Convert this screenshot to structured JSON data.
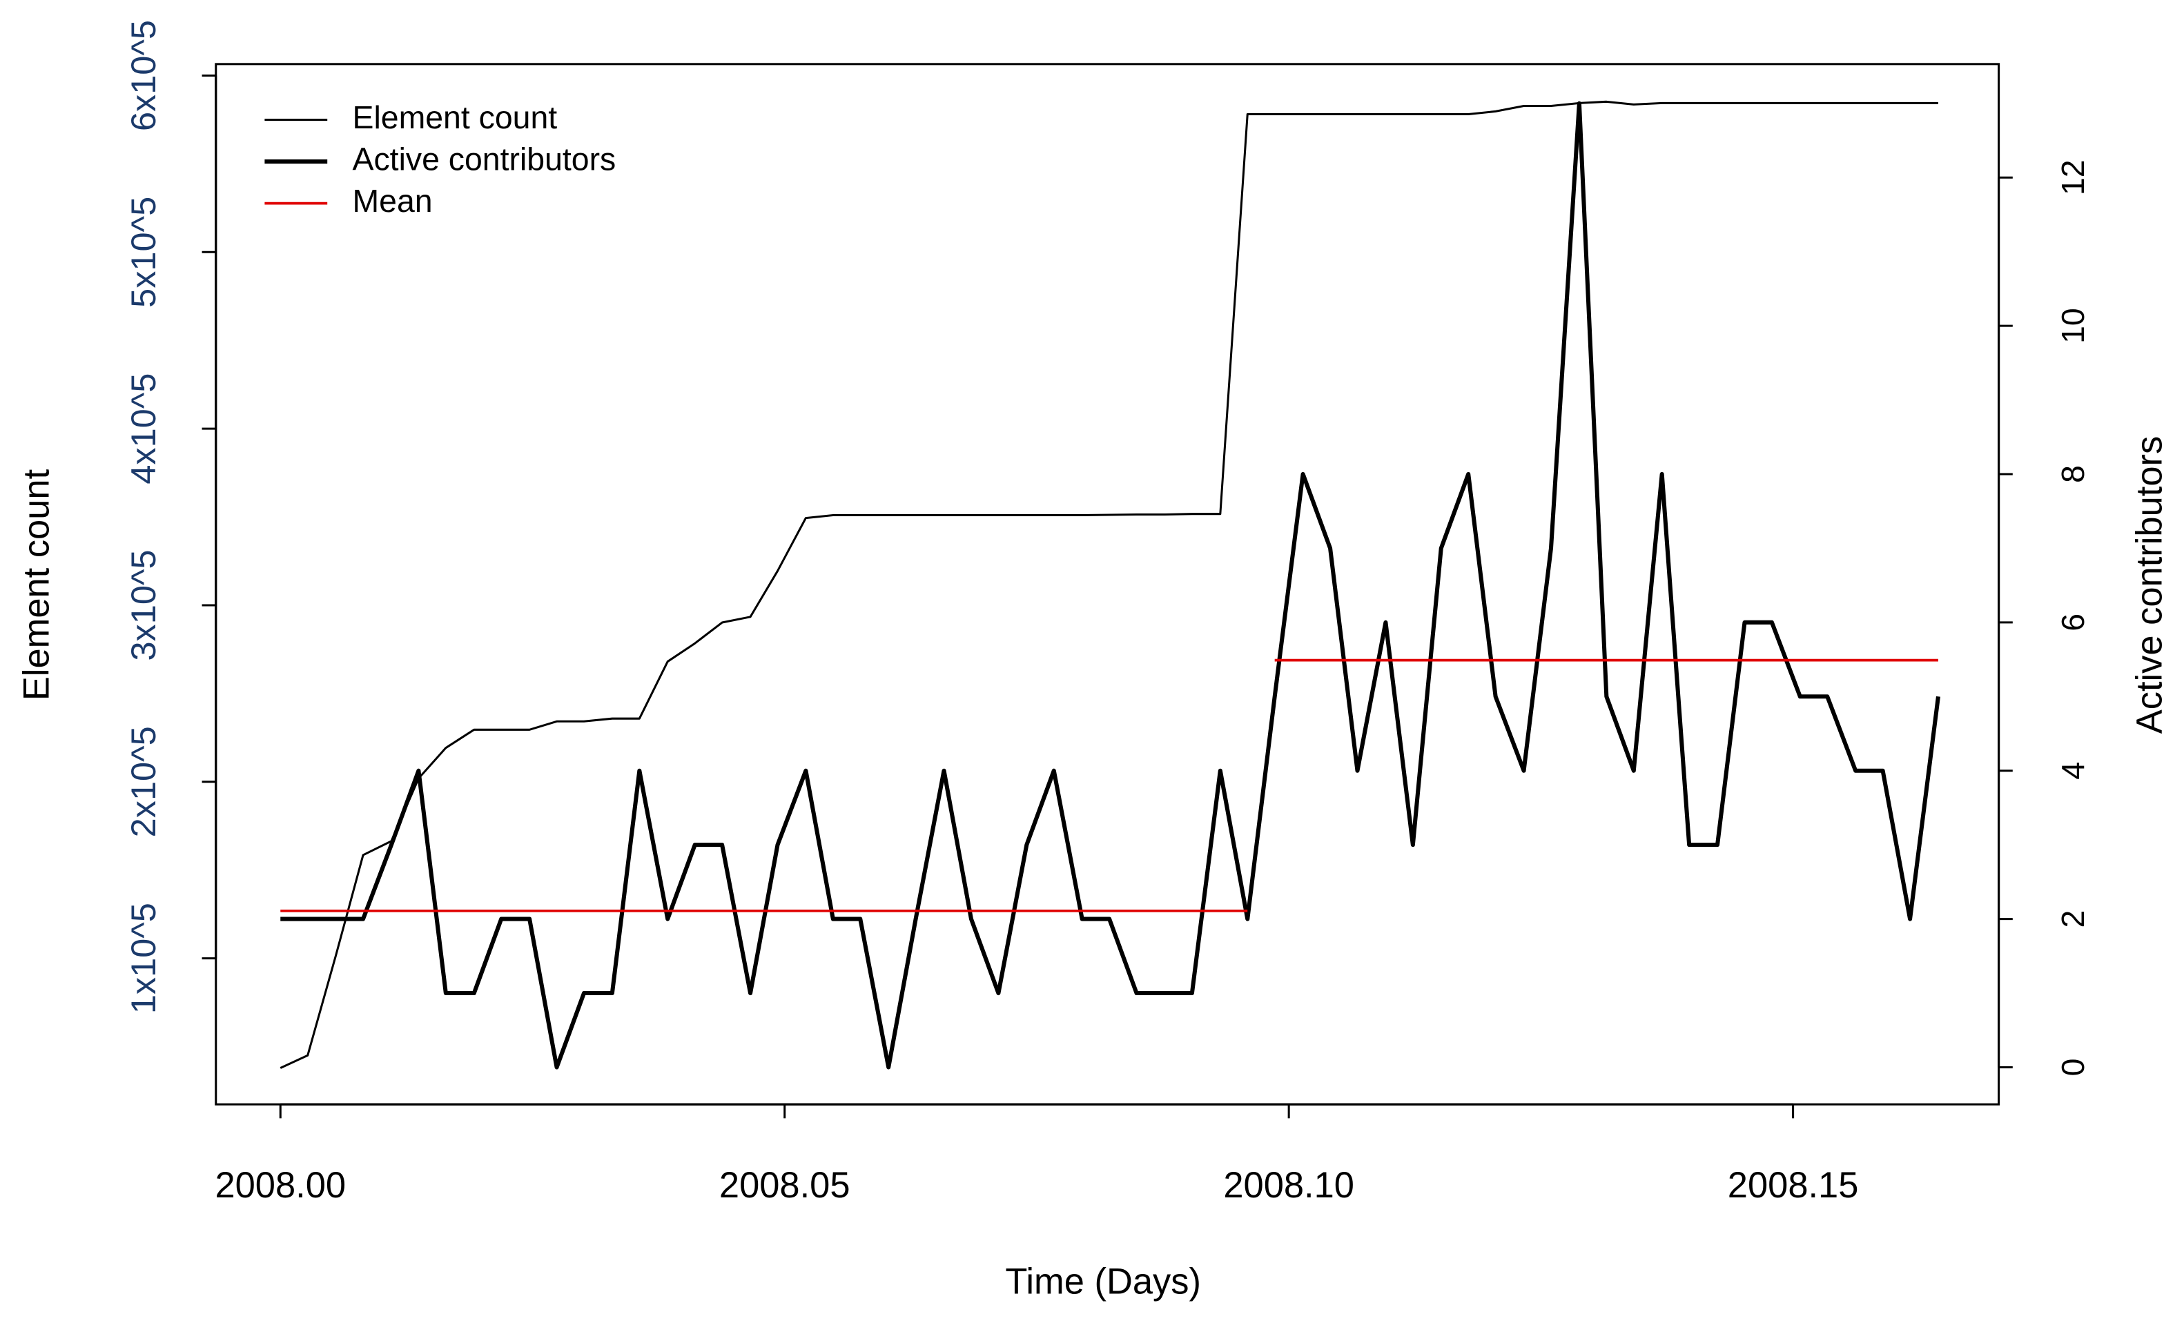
{
  "chart_data": {
    "type": "line",
    "xlabel": "Time (Days)",
    "ylabel": "Element count",
    "y2label": "Active contributors",
    "x": [
      2008.0,
      2008.0027,
      2008.0055,
      2008.0082,
      2008.011,
      2008.0137,
      2008.0164,
      2008.0192,
      2008.0219,
      2008.0247,
      2008.0274,
      2008.0301,
      2008.0329,
      2008.0356,
      2008.0384,
      2008.0411,
      2008.0438,
      2008.0466,
      2008.0493,
      2008.0521,
      2008.0548,
      2008.0575,
      2008.0603,
      2008.063,
      2008.0658,
      2008.0685,
      2008.0712,
      2008.074,
      2008.0767,
      2008.0795,
      2008.0822,
      2008.0849,
      2008.0877,
      2008.0904,
      2008.0932,
      2008.0959,
      2008.0986,
      2008.1014,
      2008.1041,
      2008.1068,
      2008.1096,
      2008.1123,
      2008.1151,
      2008.1178,
      2008.1205,
      2008.1233,
      2008.126,
      2008.1288,
      2008.1315,
      2008.1342,
      2008.137,
      2008.1397,
      2008.1425,
      2008.1452,
      2008.1479,
      2008.1507,
      2008.1534,
      2008.1562,
      2008.1589,
      2008.1616,
      2008.1644
    ],
    "series": [
      {
        "name": "Element count",
        "color": "#000000",
        "width": 1.5,
        "axis": "y",
        "values": [
          37900,
          45000,
          101700,
          158500,
          166400,
          201900,
          219200,
          229500,
          229500,
          229500,
          234200,
          234200,
          235800,
          235800,
          268100,
          278400,
          290200,
          293400,
          319400,
          349400,
          351000,
          351000,
          351000,
          351000,
          351000,
          351000,
          351000,
          351000,
          351000,
          351000,
          351200,
          351400,
          351400,
          351700,
          351700,
          578100,
          578100,
          578100,
          578100,
          578100,
          578100,
          578100,
          578100,
          578100,
          579700,
          582800,
          582800,
          584400,
          585200,
          583600,
          584400,
          584400,
          584400,
          584400,
          584400,
          584400,
          584400,
          584400,
          584400,
          584400,
          584400
        ]
      },
      {
        "name": "Active contributors",
        "color": "#000000",
        "width": 3,
        "axis": "y2",
        "values": [
          2,
          2,
          2,
          2,
          3,
          4,
          1,
          1,
          2,
          2,
          0,
          1,
          1,
          4,
          2,
          3,
          3,
          1,
          3,
          4,
          2,
          2,
          0,
          2,
          4,
          2,
          1,
          3,
          4,
          2,
          2,
          1,
          1,
          1,
          4,
          2,
          5,
          8,
          7,
          4,
          6,
          3,
          7,
          8,
          5,
          4,
          7,
          13,
          5,
          4,
          8,
          3,
          3,
          6,
          6,
          5,
          5,
          4,
          4,
          2,
          5
        ]
      },
      {
        "name": "Mean",
        "color": "#e00000",
        "width": 1.8,
        "axis": "y2",
        "x": [
          2008.0,
          2008.0959,
          null,
          2008.0986,
          2008.1644
        ],
        "values": [
          2.11,
          2.11,
          null,
          5.49,
          5.49
        ]
      }
    ],
    "xlim": [
      2007.9936,
      2008.1704
    ],
    "xticks": [
      {
        "value": 2008.0,
        "label": "2008.00"
      },
      {
        "value": 2008.05,
        "label": "2008.05"
      },
      {
        "value": 2008.1,
        "label": "2008.10"
      },
      {
        "value": 2008.15,
        "label": "2008.15"
      }
    ],
    "ylim": [
      17300,
      606500
    ],
    "yticks": [
      {
        "value": 100000,
        "label": "1x10^5"
      },
      {
        "value": 200000,
        "label": "2x10^5"
      },
      {
        "value": 300000,
        "label": "3x10^5"
      },
      {
        "value": 400000,
        "label": "4x10^5"
      },
      {
        "value": 500000,
        "label": "5x10^5"
      },
      {
        "value": 600000,
        "label": "6x10^5"
      }
    ],
    "y2lim": [
      -0.5,
      13.53
    ],
    "y2ticks": [
      0,
      2,
      4,
      6,
      8,
      10,
      12
    ],
    "legend": "top-left",
    "grid": false
  }
}
